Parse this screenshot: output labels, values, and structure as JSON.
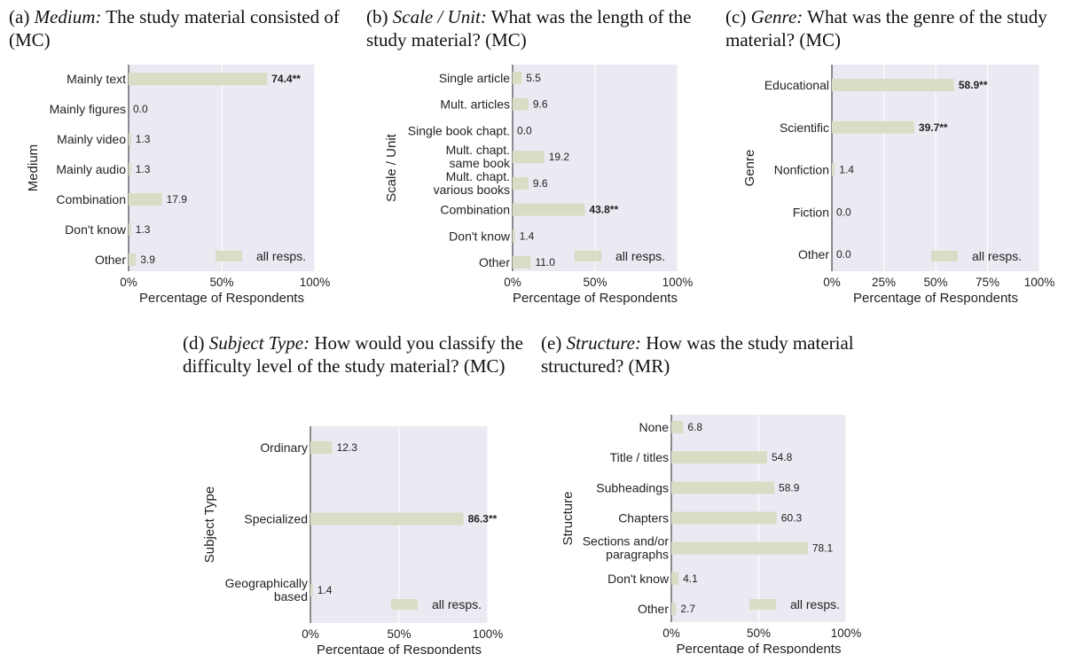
{
  "captions": {
    "a": {
      "prefix": "(a) ",
      "italic": "Medium:",
      "rest": " The study material consisted of (MC)"
    },
    "b": {
      "prefix": "(b) ",
      "italic": "Scale / Unit:",
      "rest": " What was the length of the study material? (MC)"
    },
    "c": {
      "prefix": "(c) ",
      "italic": "Genre:",
      "rest": " What was the genre of the study material? (MC)"
    },
    "d": {
      "prefix": "(d) ",
      "italic": "Subject Type:",
      "rest": " How would you classify the difficulty level of the study material? (MC)"
    },
    "e": {
      "prefix": "(e) ",
      "italic": "Structure:",
      "rest": " How was the study material structured? (MR)"
    }
  },
  "colors": {
    "bar": "#d9ddc6",
    "plot_bg": "#eaeaf2",
    "grid": "#ffffff",
    "axis": "#222222",
    "text": "#222222"
  },
  "chart_data": [
    {
      "id": "a",
      "type": "bar",
      "orientation": "horizontal",
      "ylabel": "Medium",
      "xlabel": "Percentage of Respondents",
      "xlim": [
        0,
        100
      ],
      "xticks": [
        "0%",
        "50%",
        "100%"
      ],
      "categories": [
        "Mainly text",
        "Mainly figures",
        "Mainly video",
        "Mainly audio",
        "Combination",
        "Don't know",
        "Other"
      ],
      "series": [
        {
          "name": "all resps.",
          "values": [
            74.4,
            0.0,
            1.3,
            1.3,
            17.9,
            1.3,
            3.9
          ]
        }
      ],
      "labels": [
        "74.4**",
        "0.0",
        "1.3",
        "1.3",
        "17.9",
        "1.3",
        "3.9"
      ],
      "bold": [
        true,
        false,
        false,
        false,
        false,
        false,
        false
      ],
      "legend": "bottom-right"
    },
    {
      "id": "b",
      "type": "bar",
      "orientation": "horizontal",
      "ylabel": "Scale / Unit",
      "xlabel": "Percentage of Respondents",
      "xlim": [
        0,
        100
      ],
      "xticks": [
        "0%",
        "50%",
        "100%"
      ],
      "categories": [
        "Single article",
        "Mult. articles",
        "Single book chapt.",
        "Mult. chapt.|same book",
        "Mult. chapt.|various books",
        "Combination",
        "Don't know",
        "Other"
      ],
      "series": [
        {
          "name": "all resps.",
          "values": [
            5.5,
            9.6,
            0.0,
            19.2,
            9.6,
            43.8,
            1.4,
            11.0
          ]
        }
      ],
      "labels": [
        "5.5",
        "9.6",
        "0.0",
        "19.2",
        "9.6",
        "43.8**",
        "1.4",
        "11.0"
      ],
      "bold": [
        false,
        false,
        false,
        false,
        false,
        true,
        false,
        false
      ],
      "legend": "bottom-right"
    },
    {
      "id": "c",
      "type": "bar",
      "orientation": "horizontal",
      "ylabel": "Genre",
      "xlabel": "Percentage of Respondents",
      "xlim": [
        0,
        100
      ],
      "xticks": [
        "0%",
        "25%",
        "50%",
        "75%",
        "100%"
      ],
      "categories": [
        "Educational",
        "Scientific",
        "Nonfiction",
        "Fiction",
        "Other"
      ],
      "series": [
        {
          "name": "all resps.",
          "values": [
            58.9,
            39.7,
            1.4,
            0.0,
            0.0
          ]
        }
      ],
      "labels": [
        "58.9**",
        "39.7**",
        "1.4",
        "0.0",
        "0.0"
      ],
      "bold": [
        true,
        true,
        false,
        false,
        false
      ],
      "legend": "bottom-right"
    },
    {
      "id": "d",
      "type": "bar",
      "orientation": "horizontal",
      "ylabel": "Subject Type",
      "xlabel": "Percentage of Respondents",
      "xlim": [
        0,
        100
      ],
      "xticks": [
        "0%",
        "50%",
        "100%"
      ],
      "categories": [
        "Ordinary",
        "Specialized",
        "Geographically|based"
      ],
      "series": [
        {
          "name": "all resps.",
          "values": [
            12.3,
            86.3,
            1.4
          ]
        }
      ],
      "labels": [
        "12.3",
        "86.3**",
        "1.4"
      ],
      "bold": [
        false,
        true,
        false
      ],
      "legend": "bottom-right"
    },
    {
      "id": "e",
      "type": "bar",
      "orientation": "horizontal",
      "ylabel": "Structure",
      "xlabel": "Percentage of Respondents",
      "xlim": [
        0,
        100
      ],
      "xticks": [
        "0%",
        "50%",
        "100%"
      ],
      "categories": [
        "None",
        "Title / titles",
        "Subheadings",
        "Chapters",
        "Sections and/or|paragraphs",
        "Don't know",
        "Other"
      ],
      "series": [
        {
          "name": "all resps.",
          "values": [
            6.8,
            54.8,
            58.9,
            60.3,
            78.1,
            4.1,
            2.7
          ]
        }
      ],
      "labels": [
        "6.8",
        "54.8",
        "58.9",
        "60.3",
        "78.1",
        "4.1",
        "2.7"
      ],
      "bold": [
        false,
        false,
        false,
        false,
        false,
        false,
        false
      ],
      "legend": "bottom-right"
    }
  ]
}
